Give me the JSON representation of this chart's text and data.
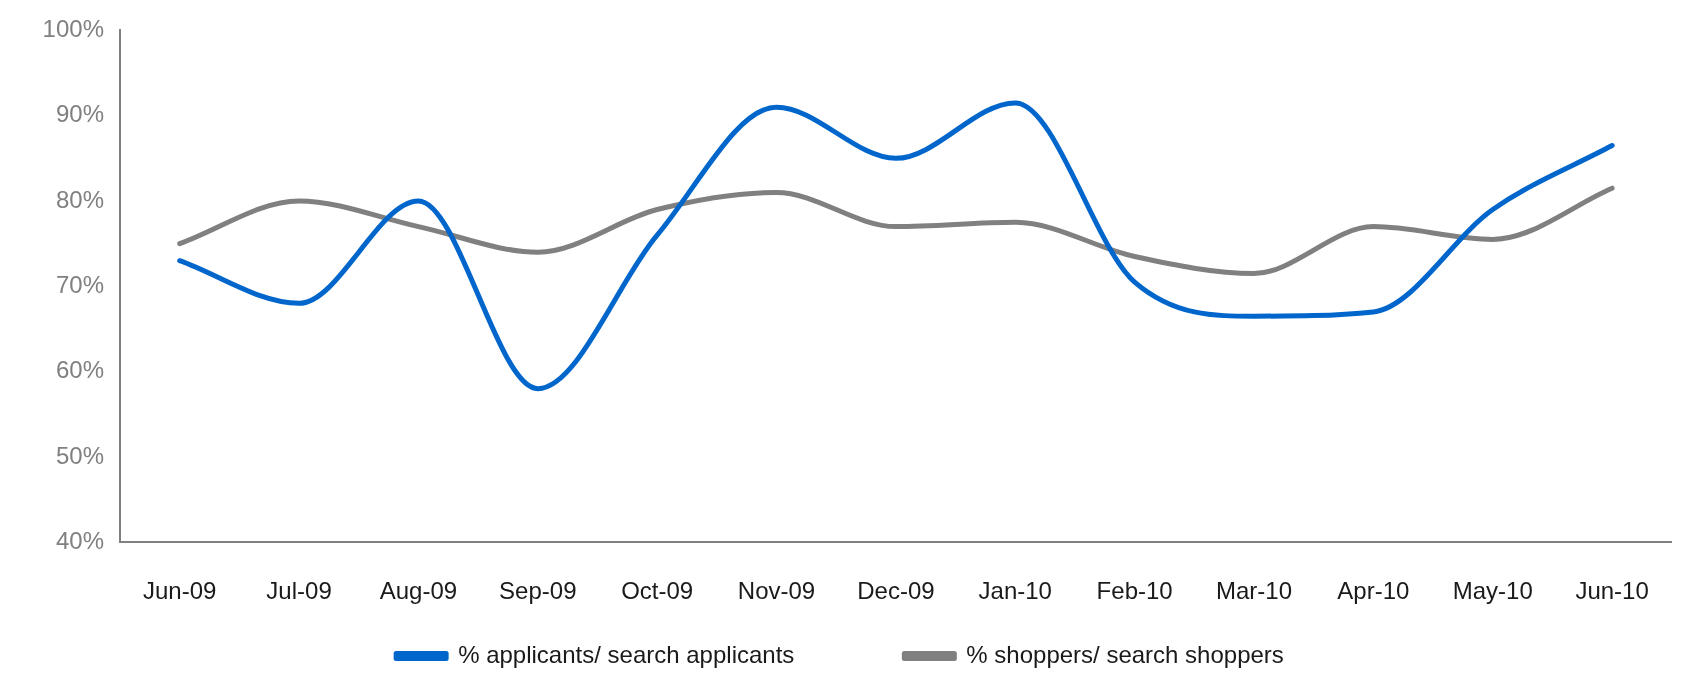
{
  "chart_data": {
    "type": "line",
    "categories": [
      "Jun-09",
      "Jul-09",
      "Aug-09",
      "Sep-09",
      "Oct-09",
      "Nov-09",
      "Dec-09",
      "Jan-10",
      "Feb-10",
      "Mar-10",
      "Apr-10",
      "May-10",
      "Jun-10"
    ],
    "series": [
      {
        "name": "% applicants/ search applicants",
        "color": "#0066cc",
        "values": [
          73,
          68,
          80,
          58,
          76,
          91,
          85,
          91.5,
          70.5,
          66.5,
          67,
          79,
          86.5
        ]
      },
      {
        "name": "% shoppers/ search shoppers",
        "color": "#808080",
        "values": [
          75,
          80,
          77,
          74,
          79,
          81,
          77,
          77.5,
          73.5,
          71.5,
          77,
          75.5,
          81.5
        ]
      }
    ],
    "ylim": [
      40,
      100
    ],
    "yticks": [
      {
        "value": 40,
        "label": "40%"
      },
      {
        "value": 50,
        "label": "50%"
      },
      {
        "value": 60,
        "label": "60%"
      },
      {
        "value": 70,
        "label": "70%"
      },
      {
        "value": 80,
        "label": "80%"
      },
      {
        "value": 90,
        "label": "90%"
      },
      {
        "value": 100,
        "label": "100%"
      }
    ],
    "grid": false,
    "legend": "bottom",
    "marker": "none",
    "line_style": "solid"
  }
}
